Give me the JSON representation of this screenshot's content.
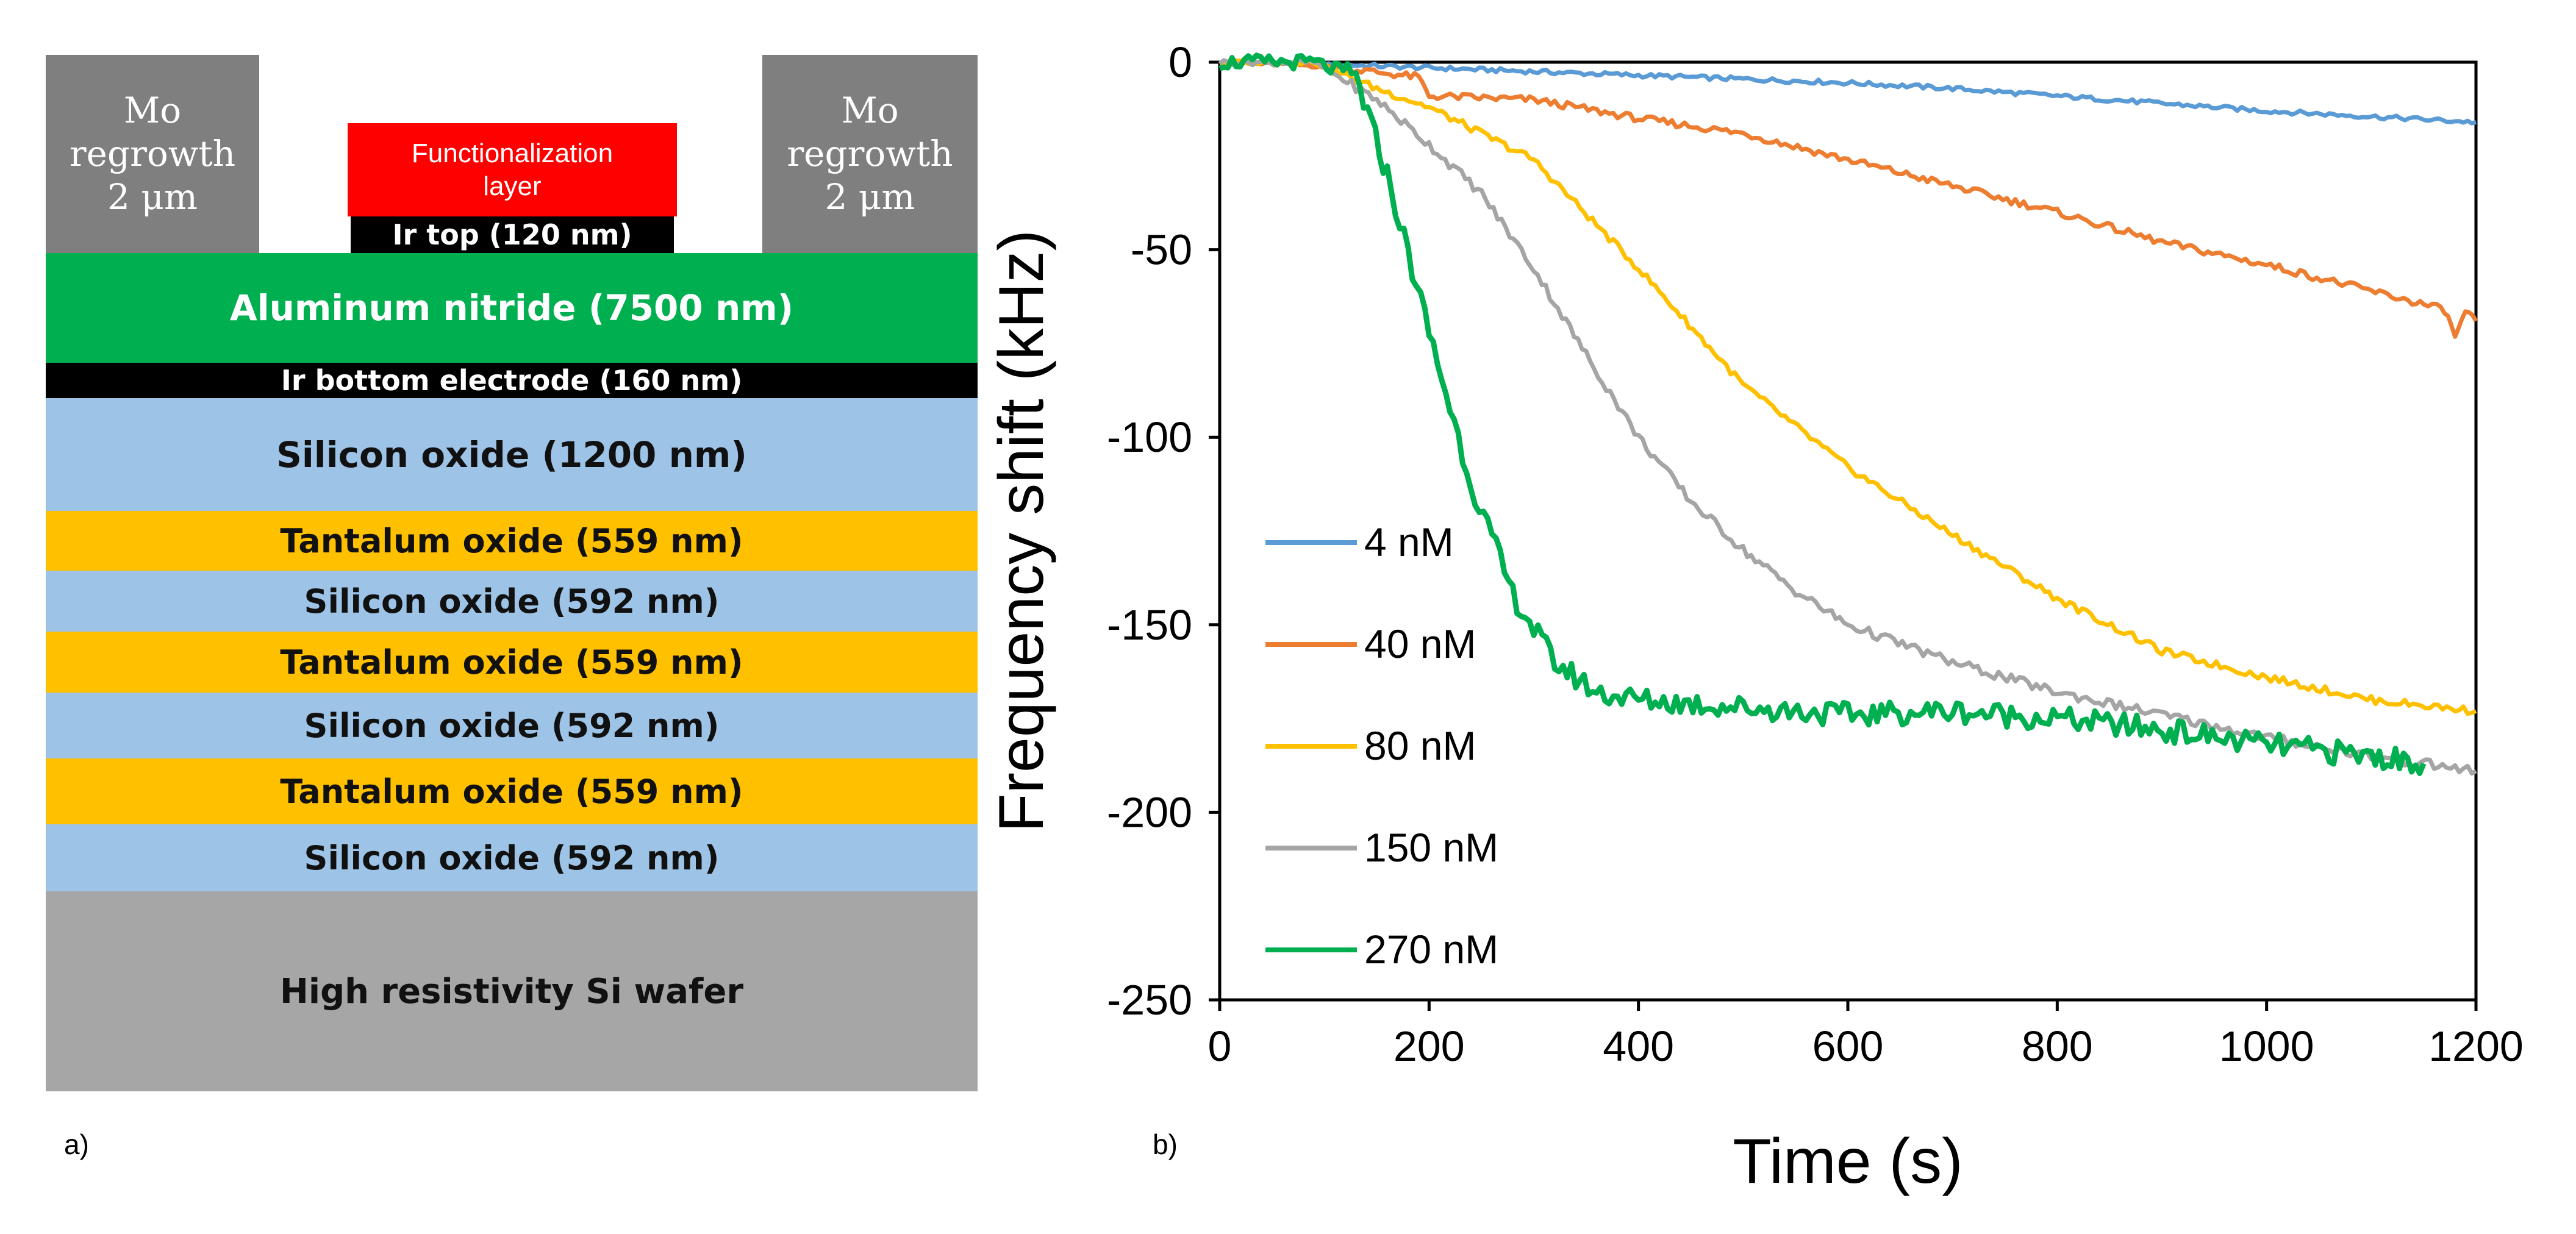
{
  "panel_a": {
    "label": "a)",
    "mo_left": {
      "text": "Mo\nregrowth\n2 μm",
      "color": "#7f7f7f"
    },
    "mo_right": {
      "text": "Mo\nregrowth\n2 μm",
      "color": "#7f7f7f"
    },
    "functionalization": {
      "text": "Functionalization\nlayer",
      "color": "#ff0000"
    },
    "ir_top": {
      "text": "Ir top (120 nm)",
      "color": "#000000"
    },
    "layers": [
      {
        "text": "Aluminum nitride (7500 nm)",
        "color": "#00b050",
        "text_color": "#ffffff"
      },
      {
        "text": "Ir bottom electrode (160 nm)",
        "color": "#000000",
        "text_color": "#ffffff"
      },
      {
        "text": "Silicon oxide (1200 nm)",
        "color": "#9dc3e6",
        "text_color": "#111111"
      },
      {
        "text": "Tantalum oxide (559 nm)",
        "color": "#ffc000",
        "text_color": "#111111"
      },
      {
        "text": "Silicon oxide (592 nm)",
        "color": "#9dc3e6",
        "text_color": "#111111"
      },
      {
        "text": "Tantalum oxide (559 nm)",
        "color": "#ffc000",
        "text_color": "#111111"
      },
      {
        "text": "Silicon oxide (592 nm)",
        "color": "#9dc3e6",
        "text_color": "#111111"
      },
      {
        "text": "Tantalum oxide (559 nm)",
        "color": "#ffc000",
        "text_color": "#111111"
      },
      {
        "text": "Silicon oxide (592 nm)",
        "color": "#9dc3e6",
        "text_color": "#111111"
      },
      {
        "text": "High resistivity Si wafer",
        "color": "#a6a6a6",
        "text_color": "#111111"
      }
    ]
  },
  "panel_b": {
    "label": "b)"
  },
  "chart_data": {
    "type": "line",
    "title": "",
    "xlabel": "Time (s)",
    "ylabel": "Frequency shift (kHz)",
    "xlim": [
      0,
      1200
    ],
    "ylim": [
      -250,
      0
    ],
    "xticks": [
      "0",
      "200",
      "400",
      "600",
      "800",
      "1000",
      "1200"
    ],
    "yticks": [
      "0",
      "-50",
      "-100",
      "-150",
      "-200",
      "-250"
    ],
    "grid": false,
    "legend_position": "left-center",
    "series": [
      {
        "name": "4 nM",
        "color": "#5b9bd5",
        "x": [
          0,
          100,
          200,
          300,
          400,
          500,
          600,
          700,
          800,
          900,
          1000,
          1100,
          1200
        ],
        "y": [
          0,
          -0.5,
          -1.5,
          -2.5,
          -3.5,
          -4.5,
          -5.5,
          -7,
          -9,
          -11,
          -13,
          -14.5,
          -16
        ]
      },
      {
        "name": "40 nM",
        "color": "#ed7d31",
        "x": [
          0,
          100,
          190,
          200,
          300,
          400,
          500,
          600,
          700,
          800,
          900,
          1000,
          1100,
          1170,
          1180,
          1190,
          1200
        ],
        "y": [
          0,
          -1,
          -4,
          -9,
          -10,
          -15,
          -19,
          -26,
          -33,
          -40,
          -48,
          -54,
          -61,
          -66,
          -73,
          -67,
          -69
        ]
      },
      {
        "name": "80 nM",
        "color": "#ffc000",
        "x": [
          0,
          90,
          150,
          200,
          300,
          400,
          500,
          600,
          700,
          800,
          900,
          1000,
          1100,
          1200
        ],
        "y": [
          0,
          0,
          -7,
          -12,
          -26,
          -55,
          -86,
          -108,
          -126,
          -143,
          -157,
          -164,
          -170,
          -173
        ]
      },
      {
        "name": "150 nM",
        "color": "#a5a5a5",
        "x": [
          0,
          90,
          150,
          200,
          250,
          300,
          350,
          400,
          450,
          500,
          550,
          600,
          700,
          800,
          900,
          1000,
          1100,
          1200
        ],
        "y": [
          0,
          0,
          -10,
          -22,
          -35,
          -55,
          -78,
          -100,
          -117,
          -130,
          -141,
          -150,
          -160,
          -168,
          -174,
          -180,
          -185,
          -189
        ]
      },
      {
        "name": "270 nM",
        "color": "#00b050",
        "x": [
          0,
          90,
          130,
          160,
          200,
          240,
          280,
          320,
          360,
          400,
          500,
          600,
          700,
          800,
          900,
          1000,
          1100,
          1150
        ],
        "y": [
          0,
          0,
          -4,
          -30,
          -72,
          -112,
          -142,
          -160,
          -168,
          -170,
          -172,
          -174,
          -173,
          -175,
          -178,
          -182,
          -185,
          -187
        ]
      }
    ]
  }
}
